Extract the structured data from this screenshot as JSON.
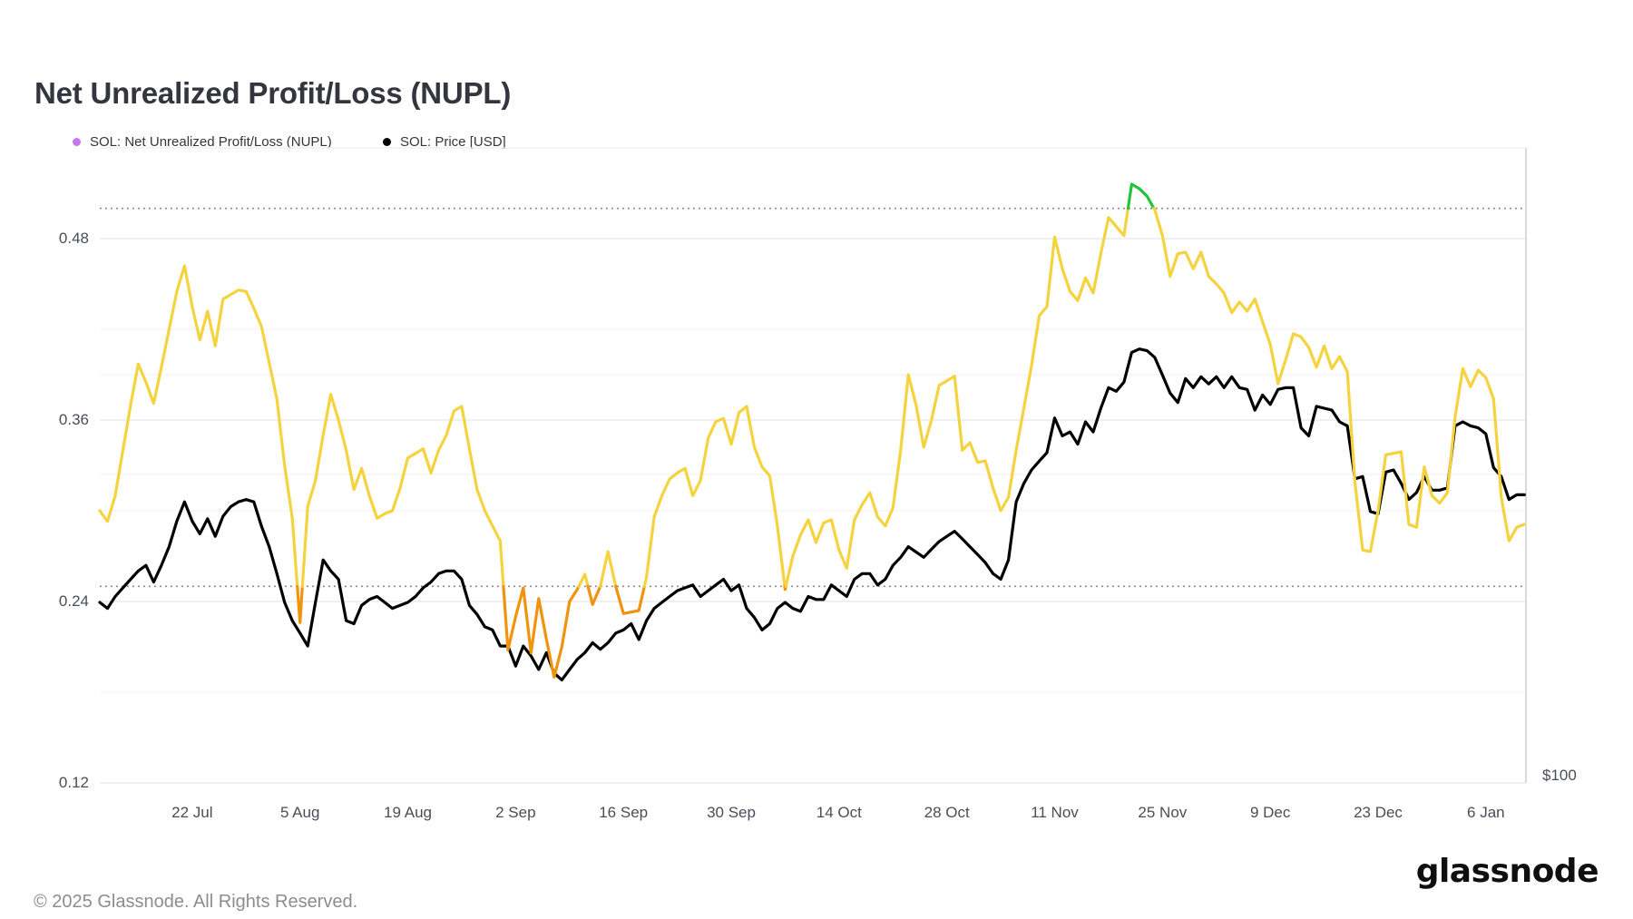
{
  "header": {
    "title": "Net Unrealized Profit/Loss (NUPL)"
  },
  "legend": {
    "items": [
      {
        "label": "SOL: Net Unrealized Profit/Loss (NUPL)",
        "dot_color": "#C678EA",
        "icon": "dot"
      },
      {
        "label": "SOL: Price [USD]",
        "dot_color": "#000000",
        "icon": "dot"
      }
    ]
  },
  "footer": {
    "copyright": "© 2025 Glassnode. All Rights Reserved.",
    "brand": "glassnode"
  },
  "colors": {
    "nupl_zone_below_025": "#F1930D",
    "nupl_zone_mid": "#F5D33F",
    "nupl_zone_above_050": "#24C33A",
    "price_line": "#000000",
    "grid_major": "#ECECEF",
    "grid_minor": "#F5F5F7",
    "dotted_reference": "#7F7F86",
    "plot_right_border": "#D9D9DE",
    "plot_top_border": "#F0F0F1"
  },
  "chart_data": {
    "type": "line",
    "title": "Net Unrealized Profit/Loss (NUPL)",
    "grid": true,
    "legend_position": "top-left",
    "x_tick_labels": [
      "22 Jul",
      "5 Aug",
      "19 Aug",
      "2 Sep",
      "16 Sep",
      "30 Sep",
      "14 Oct",
      "28 Oct",
      "11 Nov",
      "25 Nov",
      "9 Dec",
      "23 Dec",
      "6 Jan"
    ],
    "y_axis_left": {
      "tick_labels": [
        "0.48",
        "0.36",
        "0.24",
        "0.12"
      ],
      "tick_values": [
        0.48,
        0.36,
        0.24,
        0.12
      ],
      "minor_tick_values": [
        0.42,
        0.3,
        0.18
      ],
      "range": [
        0.12,
        0.54
      ],
      "reference_lines": [
        0.5,
        0.25
      ]
    },
    "y_axis_right": {
      "label": "$100",
      "scale": "log",
      "gridline_values": [
        250,
        200
      ]
    },
    "zones": {
      "thresholds": [
        0.25,
        0.5
      ],
      "meaning": [
        "orange below 0.25",
        "yellow 0.25-0.50",
        "green above 0.50"
      ]
    },
    "start_date": "2024-07-10",
    "end_date": "2025-01-11",
    "interval_days": 1,
    "series": [
      {
        "name": "SOL: Net Unrealized Profit/Loss (NUPL)",
        "axis": "left",
        "values": [
          0.3,
          0.293,
          0.31,
          0.34,
          0.37,
          0.397,
          0.385,
          0.371,
          0.395,
          0.42,
          0.445,
          0.462,
          0.435,
          0.413,
          0.432,
          0.409,
          0.44,
          0.443,
          0.446,
          0.445,
          0.434,
          0.422,
          0.398,
          0.374,
          0.33,
          0.295,
          0.226,
          0.303,
          0.32,
          0.35,
          0.377,
          0.36,
          0.34,
          0.314,
          0.328,
          0.31,
          0.295,
          0.298,
          0.3,
          0.315,
          0.335,
          0.338,
          0.341,
          0.325,
          0.34,
          0.35,
          0.366,
          0.369,
          0.341,
          0.314,
          0.3,
          0.29,
          0.28,
          0.208,
          0.23,
          0.249,
          0.206,
          0.242,
          0.215,
          0.19,
          0.21,
          0.24,
          0.248,
          0.258,
          0.238,
          0.25,
          0.273,
          0.25,
          0.232,
          0.233,
          0.234,
          0.256,
          0.296,
          0.31,
          0.321,
          0.325,
          0.328,
          0.31,
          0.32,
          0.348,
          0.359,
          0.361,
          0.344,
          0.365,
          0.369,
          0.342,
          0.329,
          0.323,
          0.29,
          0.248,
          0.27,
          0.284,
          0.294,
          0.279,
          0.292,
          0.294,
          0.274,
          0.262,
          0.294,
          0.304,
          0.312,
          0.296,
          0.29,
          0.302,
          0.34,
          0.39,
          0.37,
          0.342,
          0.36,
          0.383,
          0.386,
          0.389,
          0.34,
          0.345,
          0.332,
          0.333,
          0.315,
          0.3,
          0.309,
          0.34,
          0.368,
          0.396,
          0.429,
          0.435,
          0.481,
          0.46,
          0.445,
          0.439,
          0.454,
          0.444,
          0.47,
          0.494,
          0.488,
          0.482,
          0.516,
          0.513,
          0.508,
          0.499,
          0.482,
          0.455,
          0.47,
          0.471,
          0.46,
          0.471,
          0.455,
          0.45,
          0.444,
          0.431,
          0.438,
          0.432,
          0.44,
          0.425,
          0.41,
          0.384,
          0.4,
          0.417,
          0.415,
          0.408,
          0.395,
          0.409,
          0.394,
          0.402,
          0.392,
          0.319,
          0.274,
          0.273,
          0.3,
          0.337,
          0.338,
          0.339,
          0.291,
          0.289,
          0.329,
          0.31,
          0.305,
          0.312,
          0.362,
          0.394,
          0.382,
          0.393,
          0.388,
          0.374,
          0.309,
          0.28,
          0.289,
          0.291
        ]
      },
      {
        "name": "SOL: Price [USD]",
        "axis": "right",
        "values": [
          150,
          148,
          152,
          155,
          158,
          161,
          163,
          157,
          163,
          170,
          180,
          188,
          180,
          175,
          181,
          174,
          182,
          186,
          188,
          189,
          188,
          178,
          170,
          160,
          150,
          144,
          140,
          136,
          150,
          165,
          161,
          158,
          144,
          143,
          149,
          151,
          152,
          150,
          148,
          149,
          150,
          152,
          155,
          157,
          160,
          161,
          161,
          158,
          149,
          146,
          142,
          141,
          136,
          136,
          130,
          136,
          133,
          129,
          134,
          128,
          126,
          129,
          132,
          134,
          137,
          135,
          137,
          140,
          141,
          143,
          138,
          144,
          148,
          150,
          152,
          154,
          155,
          156,
          152,
          154,
          156,
          158,
          154,
          156,
          148,
          145,
          141,
          143,
          148,
          150,
          148,
          147,
          152,
          151,
          151,
          156,
          154,
          152,
          158,
          160,
          160,
          156,
          158,
          163,
          166,
          170,
          168,
          166,
          169,
          172,
          174,
          176,
          173,
          170,
          167,
          164,
          160,
          158,
          165,
          188,
          196,
          202,
          206,
          210,
          227,
          218,
          220,
          214,
          225,
          220,
          232,
          243,
          241,
          246,
          263,
          265,
          264,
          260,
          250,
          240,
          235,
          248,
          243,
          249,
          245,
          249,
          243,
          249,
          243,
          242,
          231,
          239,
          234,
          242,
          243,
          243,
          222,
          218,
          233,
          232,
          231,
          225,
          223,
          198,
          199,
          184,
          183,
          201,
          202,
          196,
          189,
          192,
          199,
          193,
          193,
          194,
          223,
          225,
          223,
          222,
          219,
          203,
          199,
          189,
          191,
          191
        ]
      }
    ]
  }
}
